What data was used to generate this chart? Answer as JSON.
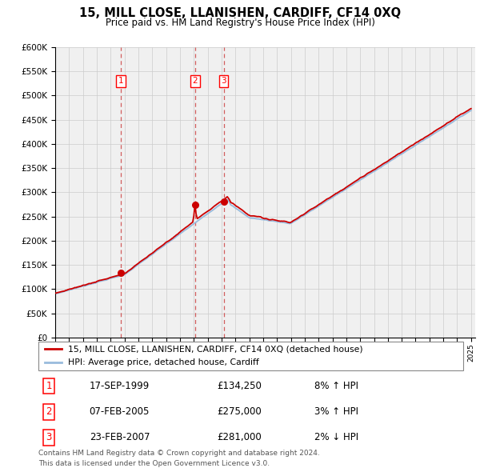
{
  "title": "15, MILL CLOSE, LLANISHEN, CARDIFF, CF14 0XQ",
  "subtitle": "Price paid vs. HM Land Registry's House Price Index (HPI)",
  "ytick_values": [
    0,
    50000,
    100000,
    150000,
    200000,
    250000,
    300000,
    350000,
    400000,
    450000,
    500000,
    550000,
    600000
  ],
  "transactions": [
    {
      "label": "1",
      "date": "17-SEP-1999",
      "price": 134250,
      "year": 1999.72,
      "hpi_pct": "8%",
      "hpi_dir": "↑"
    },
    {
      "label": "2",
      "date": "07-FEB-2005",
      "price": 275000,
      "year": 2005.1,
      "hpi_pct": "3%",
      "hpi_dir": "↑"
    },
    {
      "label": "3",
      "date": "23-FEB-2007",
      "price": 281000,
      "year": 2007.15,
      "hpi_pct": "2%",
      "hpi_dir": "↓"
    }
  ],
  "legend_property_label": "15, MILL CLOSE, LLANISHEN, CARDIFF, CF14 0XQ (detached house)",
  "legend_hpi_label": "HPI: Average price, detached house, Cardiff",
  "footer_line1": "Contains HM Land Registry data © Crown copyright and database right 2024.",
  "footer_line2": "This data is licensed under the Open Government Licence v3.0.",
  "property_color": "#cc0000",
  "hpi_color": "#99bbdd",
  "grid_color": "#cccccc",
  "vline_color": "#cc4444",
  "chart_bg": "#f0f0f0",
  "row_data": [
    [
      "1",
      "17-SEP-1999",
      "£134,250",
      "8% ↑ HPI"
    ],
    [
      "2",
      "07-FEB-2005",
      "£275,000",
      "3% ↑ HPI"
    ],
    [
      "3",
      "23-FEB-2007",
      "£281,000",
      "2% ↓ HPI"
    ]
  ]
}
